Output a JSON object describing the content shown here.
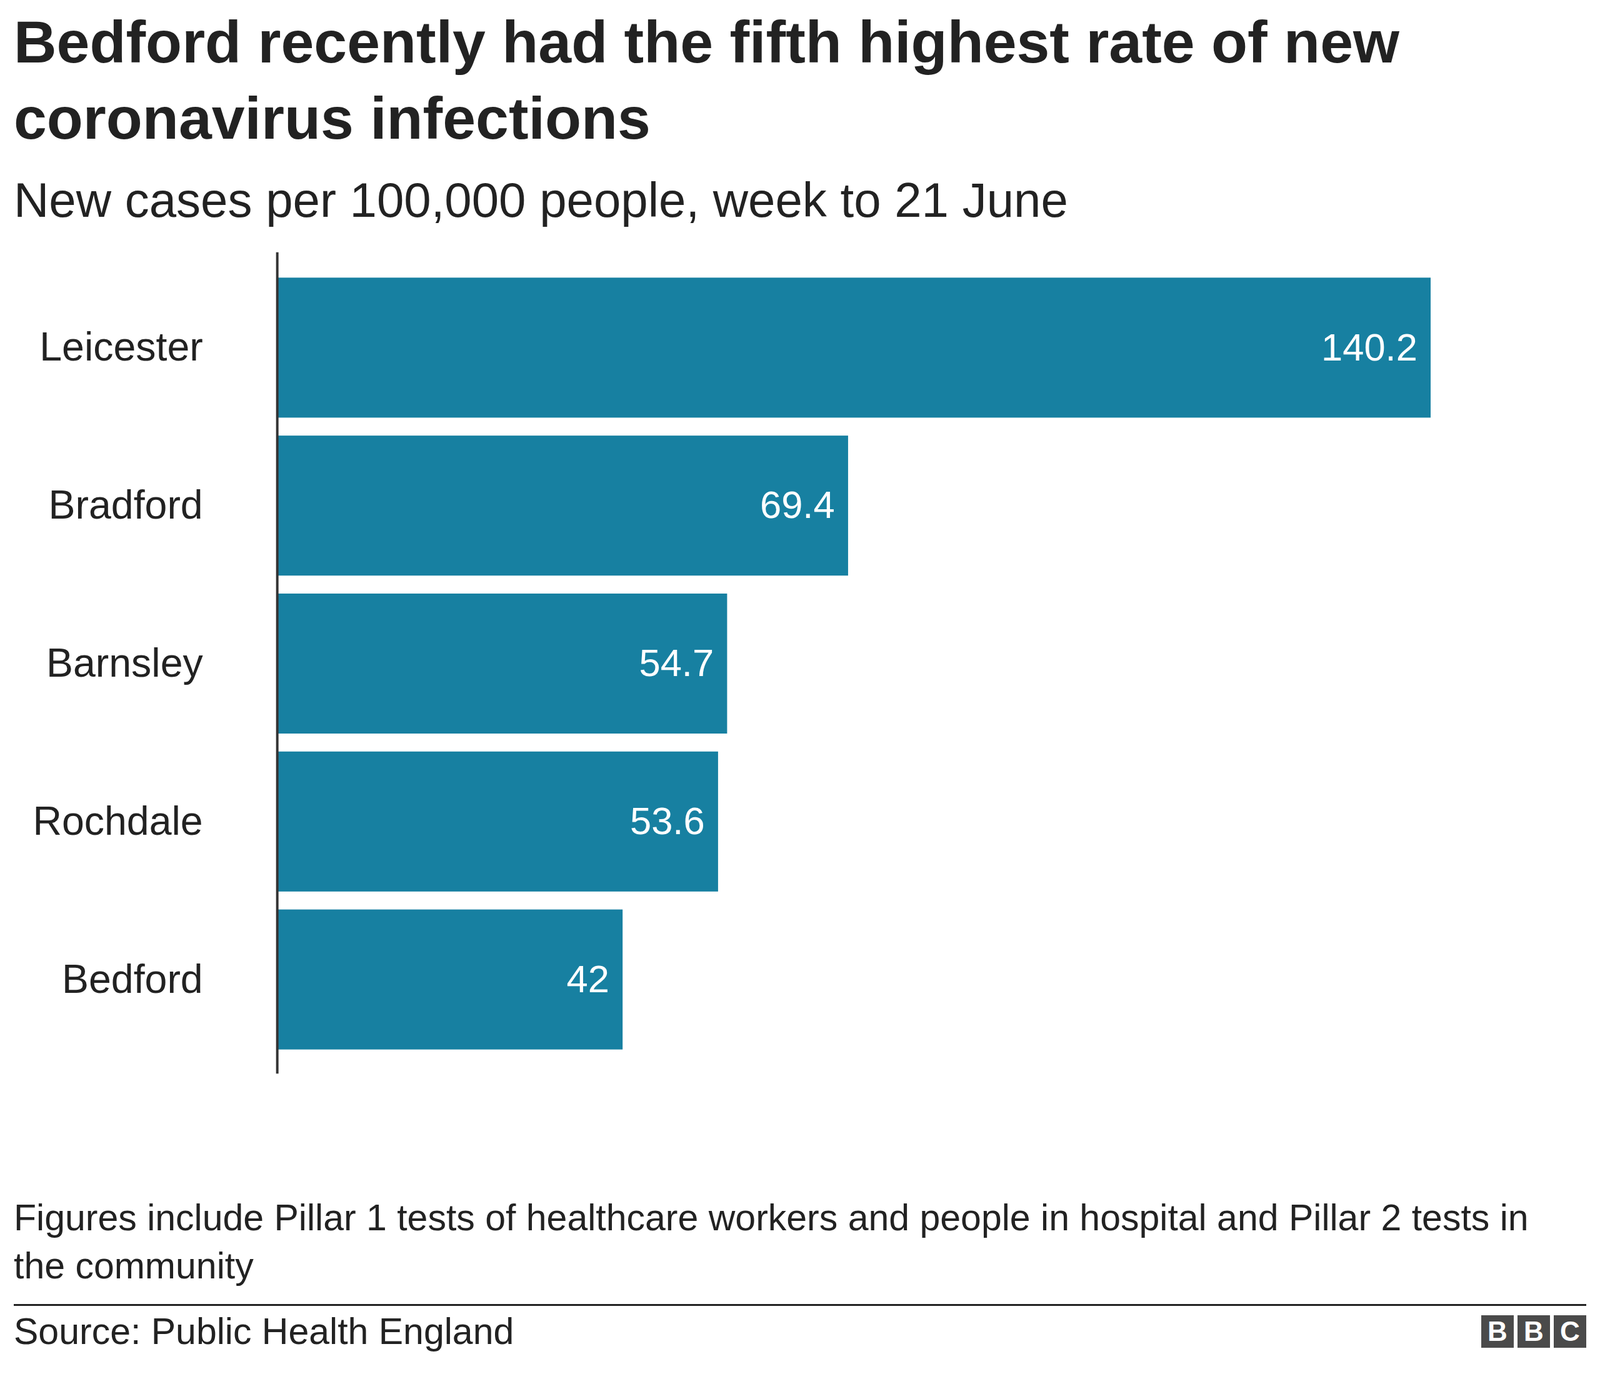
{
  "chart_data": {
    "type": "bar",
    "orientation": "horizontal",
    "title": "Bedford recently had the fifth highest rate of new coronavirus infections",
    "subtitle": "New cases per 100,000 people, week to 21 June",
    "categories": [
      "Leicester",
      "Bradford",
      "Barnsley",
      "Rochdale",
      "Bedford"
    ],
    "values": [
      140.2,
      69.4,
      54.7,
      53.6,
      42
    ],
    "color": "#1780a1",
    "xlim": [
      0,
      140.2
    ],
    "data_labels": true,
    "tick_labels": "y",
    "grid": false,
    "footnote": "Figures include Pillar 1 tests of healthcare workers and people in hospital and Pillar 2 tests in the community",
    "source": "Source: Public Health England",
    "logo": "BBC"
  }
}
